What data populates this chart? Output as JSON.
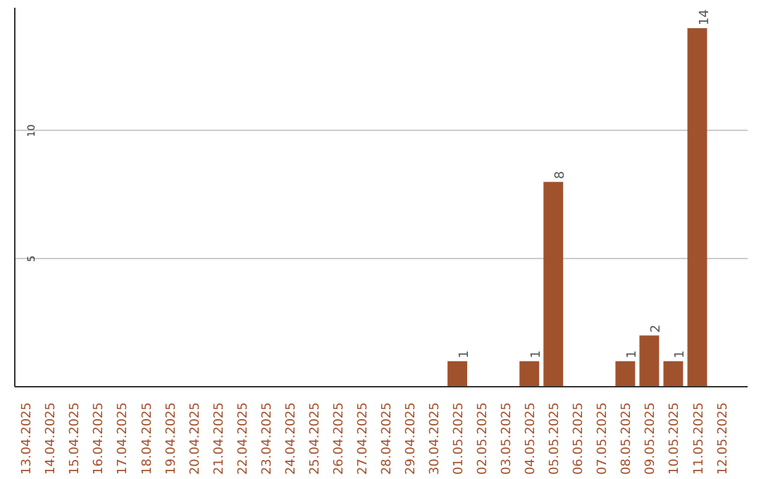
{
  "chart_data": {
    "type": "bar",
    "categories": [
      "13.04.2025",
      "14.04.2025",
      "15.04.2025",
      "16.04.2025",
      "17.04.2025",
      "18.04.2025",
      "19.04.2025",
      "20.04.2025",
      "21.04.2025",
      "22.04.2025",
      "23.04.2025",
      "24.04.2025",
      "25.04.2025",
      "26.04.2025",
      "27.04.2025",
      "28.04.2025",
      "29.04.2025",
      "30.04.2025",
      "01.05.2025",
      "02.05.2025",
      "03.05.2025",
      "04.05.2025",
      "05.05.2025",
      "06.05.2025",
      "07.05.2025",
      "08.05.2025",
      "09.05.2025",
      "10.05.2025",
      "11.05.2025",
      "12.05.2025"
    ],
    "values": [
      0,
      0,
      0,
      0,
      0,
      0,
      0,
      0,
      0,
      0,
      0,
      0,
      0,
      0,
      0,
      0,
      0,
      0,
      1,
      0,
      0,
      1,
      8,
      0,
      0,
      1,
      2,
      1,
      14,
      0
    ],
    "value_labels": [
      null,
      null,
      null,
      null,
      null,
      null,
      null,
      null,
      null,
      null,
      null,
      null,
      null,
      null,
      null,
      null,
      null,
      null,
      "1",
      null,
      null,
      "1",
      "8",
      null,
      null,
      "1",
      "2",
      "1",
      "14",
      null
    ],
    "color": "#a0522d",
    "ylim": [
      0,
      14.8
    ],
    "yticks": [
      5,
      10
    ],
    "grid": "y"
  }
}
